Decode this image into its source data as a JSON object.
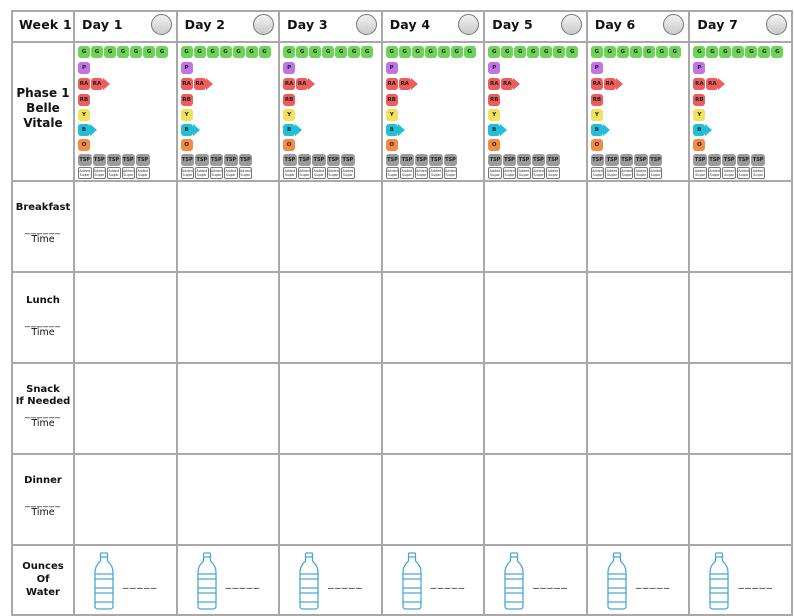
{
  "header": {
    "week_label": "Week 1"
  },
  "days": [
    {
      "label": "Day 1"
    },
    {
      "label": "Day 2"
    },
    {
      "label": "Day 3"
    },
    {
      "label": "Day 4"
    },
    {
      "label": "Day 5"
    },
    {
      "label": "Day 6"
    },
    {
      "label": "Day 7"
    }
  ],
  "phase": {
    "line1": "Phase 1",
    "line2": "Belle",
    "line3": "Vitale"
  },
  "tracker": {
    "g": "G",
    "p": "P",
    "ra": "RA",
    "rb": "RB",
    "y": "Y",
    "b": "B",
    "o": "O",
    "tsp": "TSP",
    "sugar_line1": "Added",
    "sugar_line2": "Sugar"
  },
  "meals": {
    "breakfast": "Breakfast",
    "lunch": "Lunch",
    "snack_line1": "Snack",
    "snack_line2": "If Needed",
    "dinner": "Dinner",
    "blank": "______",
    "time": "Time"
  },
  "water": {
    "line1": "Ounces",
    "line2": "Of",
    "line3": "Water",
    "blank": "_____"
  },
  "colors": {
    "green": "#6fd35a",
    "purple": "#c274e6",
    "red": "#ee5c5c",
    "yellow": "#f2e15a",
    "blue": "#20bfd8",
    "orange": "#f38c43",
    "grey": "#9b9b9b",
    "bottle": "#4aa8d8"
  }
}
